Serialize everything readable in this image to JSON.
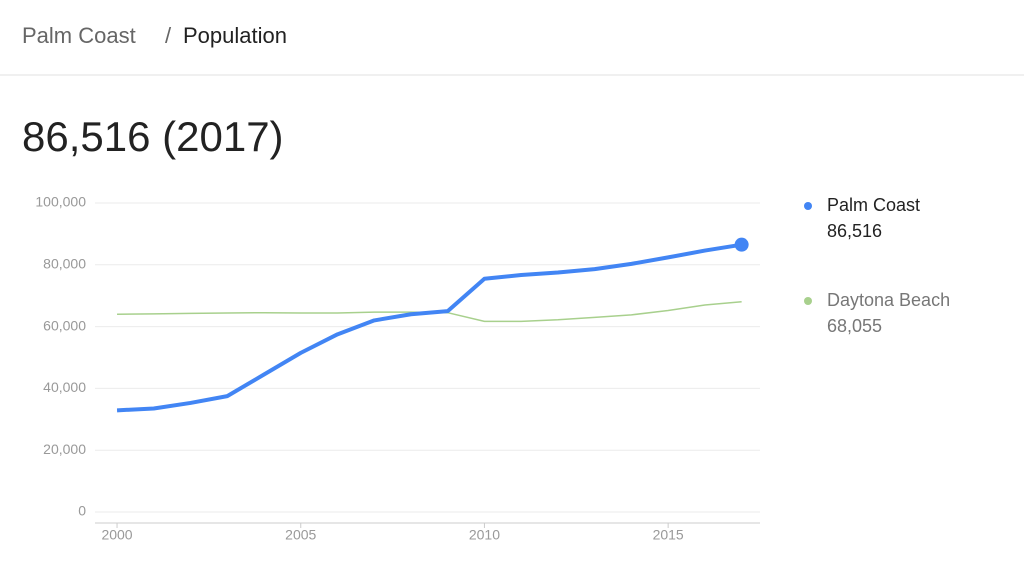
{
  "header": {
    "breadcrumb": [
      "Palm Coast",
      "/",
      "Population"
    ]
  },
  "headline": "86,516 (2017)",
  "chart_data": {
    "type": "line",
    "x": [
      2000,
      2001,
      2002,
      2003,
      2004,
      2005,
      2006,
      2007,
      2008,
      2009,
      2010,
      2011,
      2012,
      2013,
      2014,
      2015,
      2016,
      2017
    ],
    "series": [
      {
        "name": "Palm Coast",
        "color": "#4285f4",
        "legend_value": "86,516",
        "values": [
          32900,
          33500,
          35300,
          37500,
          44500,
          51500,
          57500,
          62000,
          64000,
          65000,
          75500,
          76700,
          77500,
          78600,
          80300,
          82400,
          84600,
          86516
        ]
      },
      {
        "name": "Daytona Beach",
        "color": "#a8d08d",
        "legend_value": "68,055",
        "values": [
          64000,
          64100,
          64300,
          64400,
          64500,
          64400,
          64400,
          64700,
          64700,
          64500,
          61700,
          61700,
          62200,
          63000,
          63800,
          65200,
          67000,
          68055
        ]
      }
    ],
    "xlim": [
      1999.4,
      2017.5
    ],
    "xticks": [
      2000,
      2005,
      2010,
      2015
    ],
    "ylim": [
      0,
      100000
    ],
    "yticks": [
      0,
      {
        "value": 20000,
        "label": "20,000"
      },
      {
        "value": 40000,
        "label": "40,000"
      },
      {
        "value": 60000,
        "label": "60,000"
      },
      {
        "value": 80000,
        "label": "80,000"
      },
      {
        "value": 100000,
        "label": "100,000"
      }
    ],
    "grid": true
  }
}
